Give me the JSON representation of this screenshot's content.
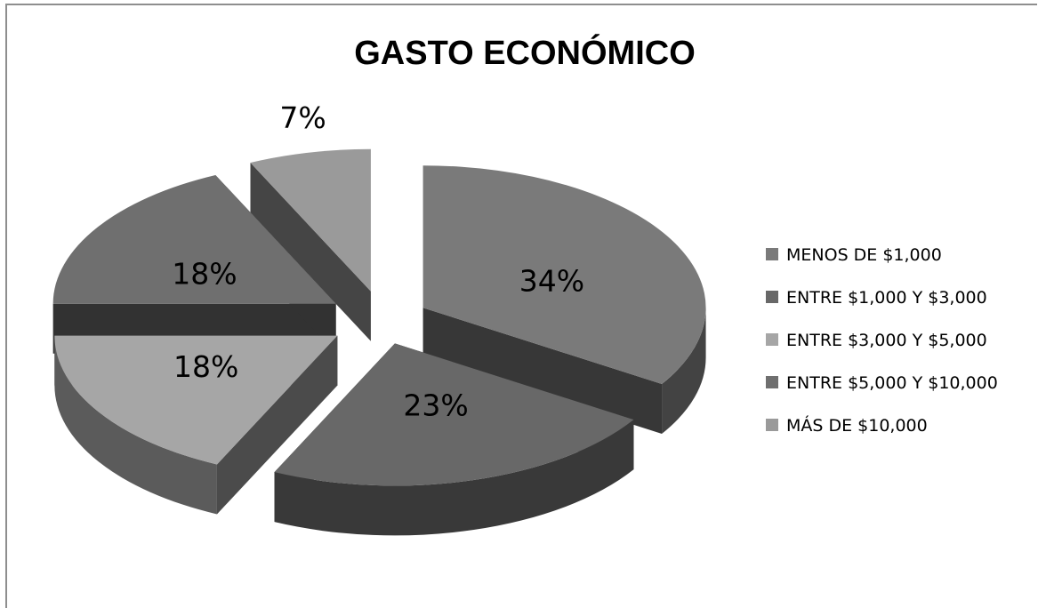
{
  "chart_data": {
    "type": "pie",
    "title": "GASTO ECONÓMICO",
    "slices": [
      {
        "name": "MENOS DE $1,000",
        "value": 34,
        "label": "34%",
        "color": "#7a7a7a"
      },
      {
        "name": "ENTRE $1,000 Y $3,000",
        "value": 23,
        "label": "23%",
        "color": "#686868"
      },
      {
        "name": "ENTRE $3,000 Y $5,000",
        "value": 18,
        "label": "18%",
        "color": "#a6a6a6"
      },
      {
        "name": "ENTRE $5,000 Y $10,000",
        "value": 18,
        "label": "18%",
        "color": "#6f6f6f"
      },
      {
        "name": "MÁS DE $10,000",
        "value": 7,
        "label": "7%",
        "color": "#9a9a9a"
      }
    ],
    "legend_position": "right",
    "style": "3d-exploded"
  }
}
